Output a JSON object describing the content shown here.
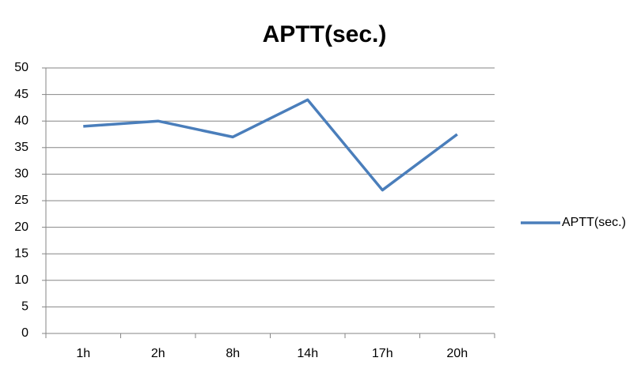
{
  "chart_data": {
    "type": "line",
    "title": "APTT(sec.)",
    "categories": [
      "1h",
      "2h",
      "8h",
      "14h",
      "17h",
      "20h"
    ],
    "series": [
      {
        "name": "APTT(sec.)",
        "color": "#4a7ebb",
        "values": [
          39,
          40,
          37,
          44,
          27,
          37.5
        ]
      }
    ],
    "ylim": [
      0,
      50
    ],
    "yticks": [
      0,
      5,
      10,
      15,
      20,
      25,
      30,
      35,
      40,
      45,
      50
    ],
    "grid": true,
    "legend": "right"
  }
}
